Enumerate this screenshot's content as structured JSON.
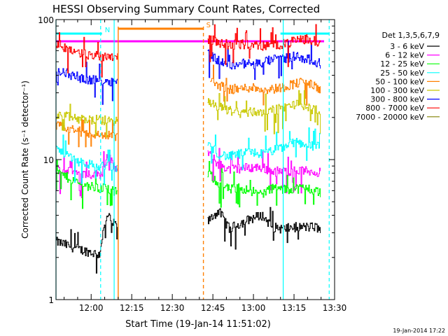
{
  "chart_data": {
    "type": "line",
    "title": "HESSI Observing Summary Count Rates, Corrected",
    "xlabel": "Start Time (19-Jan-14 11:51:02)",
    "ylabel": "Corrected Count Rate (s⁻¹ detector⁻¹)",
    "y_scale": "log",
    "ylim": [
      1,
      100
    ],
    "y_ticks": [
      1,
      10,
      100
    ],
    "x_range_min": [
      -4,
      99
    ],
    "x_ticks": [
      {
        "min": 9,
        "label": "12:00"
      },
      {
        "min": 24,
        "label": "12:15"
      },
      {
        "min": 39,
        "label": "12:30"
      },
      {
        "min": 54,
        "label": "12:45"
      },
      {
        "min": 69,
        "label": "13:00"
      },
      {
        "min": 84,
        "label": "13:15"
      },
      {
        "min": 99,
        "label": "13:30"
      }
    ],
    "legend_title": "Det 1,3,5,6,7,9",
    "legend_position": "right",
    "series": [
      {
        "name": "3 - 6 keV",
        "color": "#000000",
        "points": [
          [
            -4,
            2.6
          ],
          [
            4,
            2.3
          ],
          [
            12,
            2.1
          ],
          [
            13,
            2.8
          ],
          [
            15,
            4.0
          ],
          [
            17,
            3.5
          ],
          [
            19,
            3.4
          ],
          [
            30,
            null
          ],
          [
            52,
            3.6
          ],
          [
            56,
            4.3
          ],
          [
            60,
            3.2
          ],
          [
            64,
            3.5
          ],
          [
            68,
            3.8
          ],
          [
            72,
            4.0
          ],
          [
            76,
            3.3
          ],
          [
            80,
            3.2
          ],
          [
            84,
            3.3
          ],
          [
            88,
            3.3
          ],
          [
            92,
            3.3
          ],
          [
            94,
            3.1
          ]
        ]
      },
      {
        "name": "6 - 12 keV",
        "color": "#ff00ff",
        "points": [
          [
            -4,
            8.6
          ],
          [
            4,
            8.0
          ],
          [
            12,
            7.8
          ],
          [
            13,
            8.2
          ],
          [
            15,
            11.0
          ],
          [
            17,
            9.0
          ],
          [
            19,
            8.4
          ],
          [
            30,
            null
          ],
          [
            52,
            11.0
          ],
          [
            56,
            9.3
          ],
          [
            60,
            8.5
          ],
          [
            64,
            8.7
          ],
          [
            68,
            8.8
          ],
          [
            72,
            8.8
          ],
          [
            76,
            8.3
          ],
          [
            80,
            8.2
          ],
          [
            84,
            8.4
          ],
          [
            88,
            8.3
          ],
          [
            92,
            8.2
          ],
          [
            94,
            8.0
          ]
        ]
      },
      {
        "name": "12 - 25 keV",
        "color": "#00ff00",
        "points": [
          [
            -4,
            8.2
          ],
          [
            4,
            6.8
          ],
          [
            12,
            6.2
          ],
          [
            14,
            6.4
          ],
          [
            16,
            6.0
          ],
          [
            19,
            5.8
          ],
          [
            30,
            null
          ],
          [
            52,
            8.0
          ],
          [
            56,
            6.8
          ],
          [
            60,
            6.1
          ],
          [
            64,
            6.3
          ],
          [
            68,
            6.0
          ],
          [
            72,
            5.7
          ],
          [
            76,
            6.3
          ],
          [
            80,
            6.1
          ],
          [
            84,
            6.2
          ],
          [
            88,
            6.3
          ],
          [
            92,
            6.0
          ],
          [
            94,
            5.8
          ]
        ]
      },
      {
        "name": "25 - 50 keV",
        "color": "#00ffff",
        "points": [
          [
            -4,
            12.0
          ],
          [
            4,
            9.8
          ],
          [
            12,
            8.8
          ],
          [
            14,
            9.2
          ],
          [
            16,
            9.0
          ],
          [
            19,
            8.7
          ],
          [
            30,
            null
          ],
          [
            52,
            13.0
          ],
          [
            56,
            11.0
          ],
          [
            60,
            10.5
          ],
          [
            64,
            11.0
          ],
          [
            68,
            11.3
          ],
          [
            72,
            11.0
          ],
          [
            76,
            11.6
          ],
          [
            80,
            12.3
          ],
          [
            84,
            13.4
          ],
          [
            88,
            13.0
          ],
          [
            92,
            12.5
          ],
          [
            94,
            12.2
          ]
        ]
      },
      {
        "name": "50 - 100 keV",
        "color": "#ff8000",
        "points": [
          [
            -4,
            17.5
          ],
          [
            4,
            16.0
          ],
          [
            12,
            15.0
          ],
          [
            16,
            14.8
          ],
          [
            19,
            14.8
          ],
          [
            30,
            null
          ],
          [
            53,
            37
          ],
          [
            56,
            34
          ],
          [
            60,
            32
          ],
          [
            64,
            32
          ],
          [
            68,
            33
          ],
          [
            72,
            32
          ],
          [
            76,
            32
          ],
          [
            80,
            33
          ],
          [
            84,
            35
          ],
          [
            88,
            36
          ],
          [
            92,
            33
          ],
          [
            94,
            31
          ]
        ]
      },
      {
        "name": "100 - 300 keV",
        "color": "#c8c800",
        "points": [
          [
            -4,
            21.0
          ],
          [
            4,
            19.5
          ],
          [
            12,
            19.2
          ],
          [
            16,
            19.0
          ],
          [
            19,
            19.0
          ],
          [
            30,
            null
          ],
          [
            52,
            25.5
          ],
          [
            56,
            24.0
          ],
          [
            60,
            22.5
          ],
          [
            64,
            21.5
          ],
          [
            68,
            22.0
          ],
          [
            72,
            22.0
          ],
          [
            76,
            22.5
          ],
          [
            80,
            23.5
          ],
          [
            84,
            25.0
          ],
          [
            88,
            24.0
          ],
          [
            92,
            22.5
          ],
          [
            94,
            21.5
          ]
        ]
      },
      {
        "name": "300 - 800 keV",
        "color": "#0000ff",
        "points": [
          [
            -4,
            44
          ],
          [
            2,
            40
          ],
          [
            6,
            38
          ],
          [
            10,
            37
          ],
          [
            14,
            36.5
          ],
          [
            19,
            36.5
          ],
          [
            30,
            null
          ],
          [
            52,
            58
          ],
          [
            56,
            51
          ],
          [
            60,
            47
          ],
          [
            64,
            49
          ],
          [
            68,
            48
          ],
          [
            72,
            49
          ],
          [
            76,
            52
          ],
          [
            80,
            53
          ],
          [
            84,
            55
          ],
          [
            88,
            53
          ],
          [
            92,
            50
          ],
          [
            94,
            48
          ]
        ]
      },
      {
        "name": "800 - 7000 keV",
        "color": "#ff0000",
        "points": [
          [
            -4,
            68
          ],
          [
            0,
            62
          ],
          [
            4,
            58
          ],
          [
            8,
            56
          ],
          [
            12,
            55
          ],
          [
            16,
            55
          ],
          [
            19,
            55
          ],
          [
            30,
            null
          ],
          [
            52,
            73
          ],
          [
            56,
            69
          ],
          [
            60,
            66
          ],
          [
            64,
            67
          ],
          [
            68,
            66
          ],
          [
            72,
            65
          ],
          [
            76,
            66
          ],
          [
            80,
            67
          ],
          [
            84,
            70
          ],
          [
            88,
            73
          ],
          [
            92,
            70
          ],
          [
            94,
            67
          ]
        ]
      },
      {
        "name": "7000 - 20000 keV",
        "color": "#808000",
        "points": []
      }
    ],
    "attenuator_lines": [
      {
        "min": 19.0,
        "color": "#ff8000",
        "style": "solid"
      },
      {
        "min": 50.5,
        "color": "#ff8000",
        "style": "dashed"
      }
    ],
    "night_lines": [
      {
        "min": -4.0,
        "style": "solid"
      },
      {
        "min": 12.5,
        "style": "dashed"
      },
      {
        "min": 17.5,
        "style": "solid"
      },
      {
        "min": 80.0,
        "style": "solid"
      },
      {
        "min": 97.0,
        "style": "dashed"
      }
    ],
    "flag_bars": [
      {
        "label": "N",
        "color": "#00ffff",
        "start": -4,
        "end": 13
      },
      {
        "label": "S",
        "color": "#ff8000",
        "start": 19,
        "end": 50.5
      },
      {
        "label": "",
        "color": "#00ffff",
        "start": 79,
        "end": 97
      }
    ],
    "saa_level": 70,
    "saa_color": "#ff00ff"
  },
  "footer": {
    "date_stamp": "19-Jan-2014 17:22"
  }
}
